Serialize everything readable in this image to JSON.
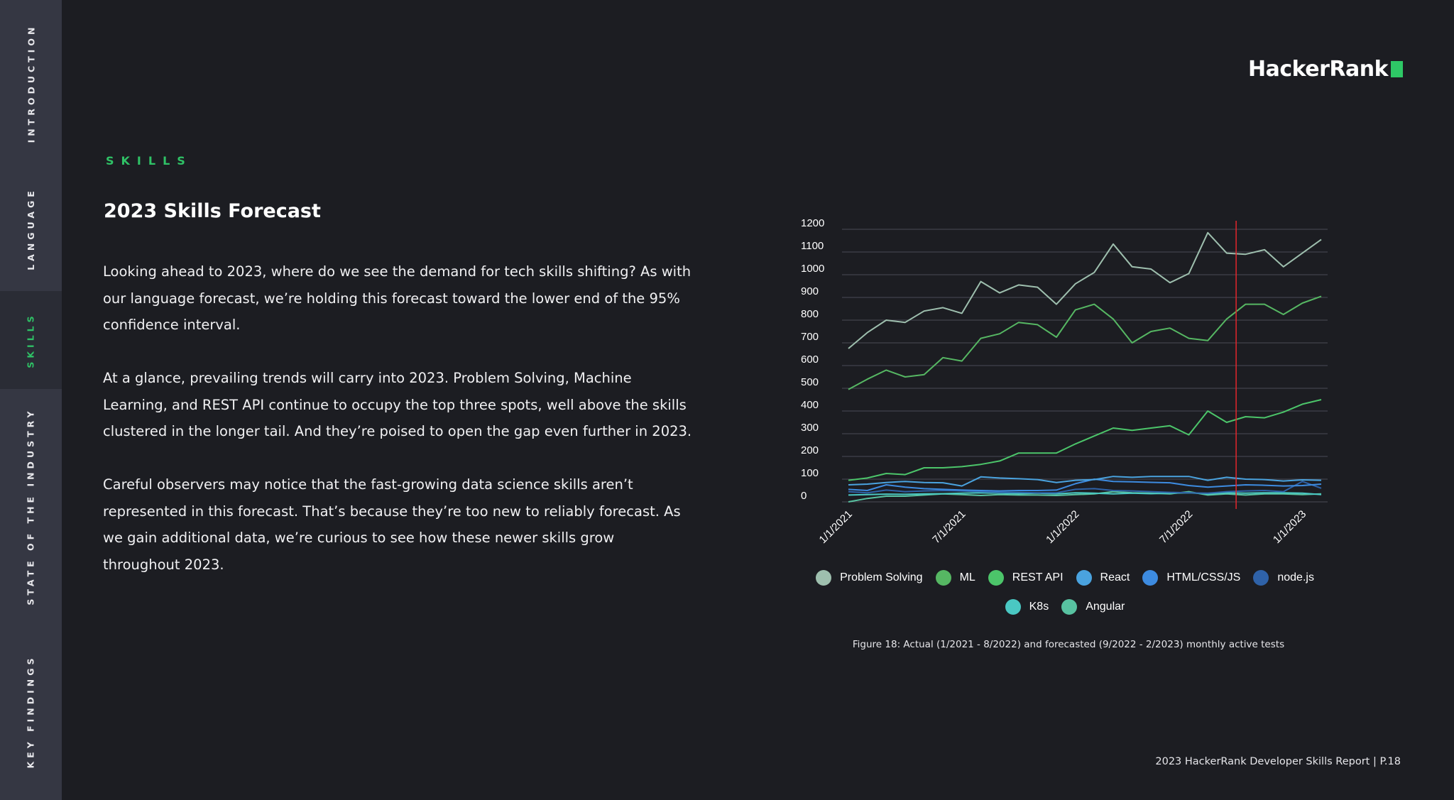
{
  "sidebar": {
    "tabs": [
      {
        "label": "INTRODUCTION",
        "active": false
      },
      {
        "label": "LANGUAGE",
        "active": false
      },
      {
        "label": "SKILLS",
        "active": true
      },
      {
        "label": "STATE OF THE INDUSTRY",
        "active": false
      },
      {
        "label": "KEY FINDINGS",
        "active": false
      }
    ]
  },
  "brand": {
    "logo_text": "HackerRank",
    "accent": "#2ec866"
  },
  "section": {
    "eyebrow": "SKILLS",
    "title": "2023 Skills Forecast"
  },
  "body": {
    "paragraphs": [
      "Looking ahead to 2023, where do we see the demand for tech skills shifting? As with our language forecast, we’re holding this forecast toward the lower end of the 95% confidence interval.",
      "At a glance, prevailing trends will carry into 2023. Problem Solving, Machine Learning, and REST API continue to occupy the top three spots, well above the skills clustered in the longer tail.  And they’re poised to open the gap even further in 2023.",
      "Careful observers may notice that the fast-growing data science skills aren’t represented in this forecast. That’s because they’re too new to reliably forecast. As we gain additional data, we’re curious to see how these newer skills grow throughout 2023."
    ]
  },
  "chart_data": {
    "type": "line",
    "ylim": [
      0,
      1200
    ],
    "y_ticks": [
      0,
      100,
      200,
      300,
      400,
      500,
      600,
      700,
      800,
      900,
      1000,
      1100,
      1200
    ],
    "x_tick_labels": [
      "1/1/2021",
      "7/1/2021",
      "1/1/2022",
      "7/1/2022",
      "1/1/2023"
    ],
    "x_tick_index": [
      0,
      6,
      12,
      18,
      24
    ],
    "x_count": 26,
    "forecast_start_index": 20.5,
    "forecast_line_color": "#e3262b",
    "grid": true,
    "legend_position": "bottom",
    "series": [
      {
        "name": "Problem Solving",
        "color": "#9ebfae",
        "values": [
          675,
          745,
          800,
          790,
          840,
          855,
          830,
          970,
          920,
          955,
          945,
          870,
          960,
          1010,
          1135,
          1035,
          1025,
          965,
          1005,
          1185,
          1095,
          1090,
          1110,
          1035,
          1095,
          1155
        ]
      },
      {
        "name": "ML",
        "color": "#56b763",
        "values": [
          495,
          540,
          580,
          550,
          560,
          635,
          620,
          720,
          740,
          790,
          780,
          725,
          845,
          870,
          805,
          700,
          750,
          765,
          720,
          710,
          805,
          870,
          870,
          825,
          875,
          905
        ]
      },
      {
        "name": "REST API",
        "color": "#4cc56a",
        "values": [
          95,
          105,
          125,
          120,
          150,
          150,
          155,
          165,
          180,
          215,
          215,
          215,
          255,
          290,
          325,
          315,
          325,
          335,
          295,
          400,
          350,
          375,
          370,
          395,
          430,
          450
        ]
      },
      {
        "name": "React",
        "color": "#4aa3df",
        "values": [
          75,
          78,
          85,
          90,
          85,
          84,
          70,
          110,
          105,
          102,
          98,
          85,
          95,
          98,
          112,
          108,
          112,
          112,
          112,
          95,
          108,
          100,
          98,
          92,
          97,
          95
        ]
      },
      {
        "name": "HTML/CSS/JS",
        "color": "#3d8be0",
        "values": [
          55,
          50,
          75,
          65,
          58,
          55,
          52,
          50,
          48,
          50,
          50,
          52,
          80,
          100,
          90,
          88,
          86,
          84,
          72,
          65,
          70,
          75,
          73,
          70,
          72,
          78
        ]
      },
      {
        "name": "node.js",
        "color": "#2f62a8",
        "values": [
          45,
          40,
          52,
          45,
          48,
          50,
          48,
          45,
          42,
          42,
          40,
          40,
          55,
          58,
          50,
          48,
          45,
          42,
          40,
          38,
          45,
          48,
          50,
          45,
          90,
          60
        ]
      },
      {
        "name": "K8s",
        "color": "#4ac8c3",
        "values": [
          30,
          32,
          34,
          33,
          35,
          36,
          38,
          40,
          38,
          36,
          38,
          35,
          40,
          38,
          35,
          38,
          36,
          38,
          40,
          35,
          40,
          38,
          40,
          40,
          38,
          32
        ]
      },
      {
        "name": "Angular",
        "color": "#58c2a1",
        "values": [
          0,
          15,
          25,
          25,
          30,
          35,
          32,
          28,
          32,
          30,
          30,
          28,
          32,
          35,
          45,
          40,
          38,
          35,
          45,
          30,
          35,
          30,
          35,
          35,
          32,
          35
        ]
      }
    ],
    "caption": "Figure 18: Actual (1/2021 - 8/2022) and forecasted (9/2022 - 2/2023) monthly active tests"
  },
  "footer": {
    "text": "2023 HackerRank Developer Skills Report | P.18"
  }
}
